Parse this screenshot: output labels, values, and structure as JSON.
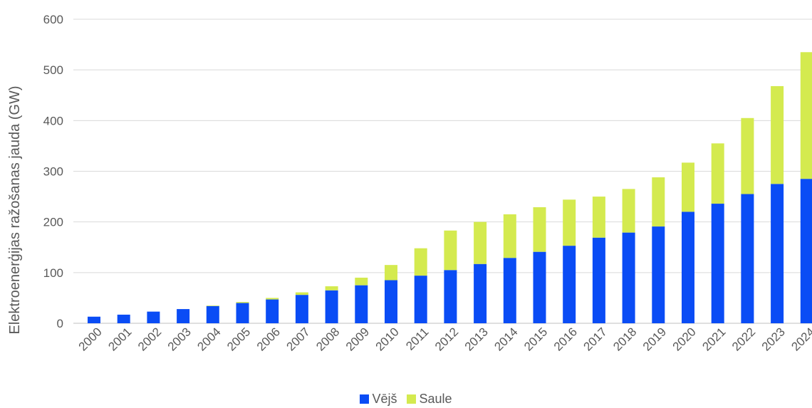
{
  "chart_data": {
    "type": "bar",
    "stacked": true,
    "title": "",
    "xlabel": "",
    "ylabel": "Elektroenerģijas ražošanas jauda (GW)",
    "ylim": [
      0,
      600
    ],
    "yticks": [
      0,
      100,
      200,
      300,
      400,
      500,
      600
    ],
    "grid": true,
    "legend_position": "bottom",
    "categories": [
      "2000",
      "2001",
      "2002",
      "2003",
      "2004",
      "2005",
      "2006",
      "2007",
      "2008",
      "2009",
      "2010",
      "2011",
      "2012",
      "2013",
      "2014",
      "2015",
      "2016",
      "2017",
      "2018",
      "2019",
      "2020",
      "2021",
      "2022",
      "2023",
      "2024"
    ],
    "series": [
      {
        "name": "Vējš",
        "color": "#0a4cf5",
        "values": [
          13,
          17,
          23,
          28,
          34,
          40,
          47,
          56,
          65,
          75,
          85,
          94,
          105,
          117,
          129,
          141,
          153,
          169,
          179,
          191,
          220,
          236,
          255,
          275,
          285
        ]
      },
      {
        "name": "Saule",
        "color": "#d4ea4f",
        "values": [
          0,
          0,
          0,
          0,
          1,
          2,
          3,
          5,
          8,
          15,
          30,
          54,
          78,
          83,
          86,
          88,
          91,
          81,
          86,
          97,
          97,
          119,
          150,
          193,
          250
        ]
      }
    ]
  }
}
